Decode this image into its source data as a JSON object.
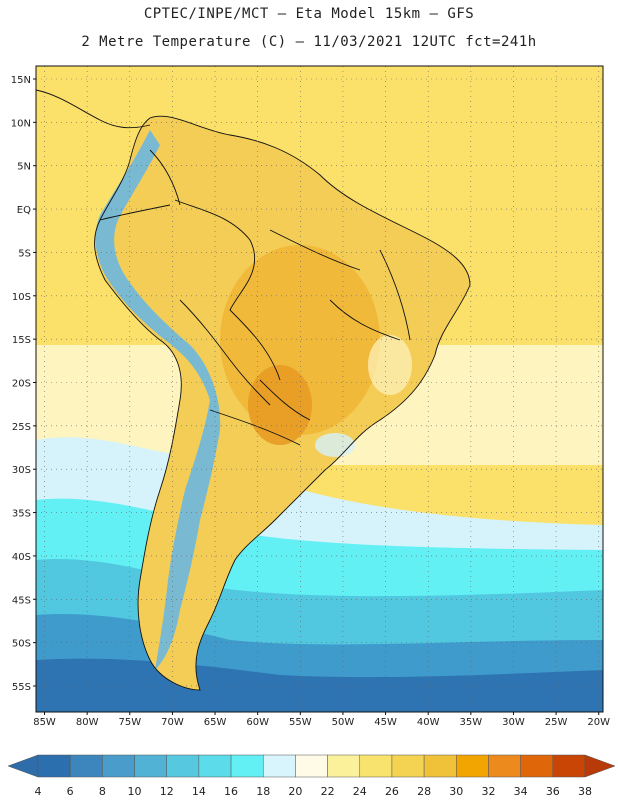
{
  "header": {
    "line1": "CPTEC/INPE/MCT –  Eta Model 15km – GFS",
    "line2": "2 Metre Temperature (C) – 11/03/2021 12UTC fct=241h"
  },
  "map": {
    "lat_labels": [
      "15N",
      "10N",
      "5N",
      "EQ",
      "5S",
      "10S",
      "15S",
      "20S",
      "25S",
      "30S",
      "35S",
      "40S",
      "45S",
      "50S",
      "55S"
    ],
    "lon_labels": [
      "85W",
      "80W",
      "75W",
      "70W",
      "65W",
      "60W",
      "55W",
      "50W",
      "45W",
      "40W",
      "35W",
      "30W",
      "25W",
      "20W"
    ],
    "extent": {
      "lon_min": -86,
      "lon_max": -19.5,
      "lat_min": -58,
      "lat_max": 16.5
    }
  },
  "colorbar": {
    "units": "C",
    "ticks": [
      "4",
      "6",
      "8",
      "10",
      "12",
      "14",
      "16",
      "18",
      "20",
      "22",
      "24",
      "26",
      "28",
      "30",
      "32",
      "34",
      "36",
      "38"
    ],
    "colors": [
      "#2b6fae",
      "#3d86bd",
      "#4a9ccb",
      "#52b2d6",
      "#56c8e0",
      "#5cdcea",
      "#62f0f5",
      "#d8f4fc",
      "#fffbe6",
      "#fbf19a",
      "#f8e36f",
      "#f4d352",
      "#f0c23a",
      "#f2a500",
      "#ec8a1e",
      "#e0660a",
      "#c94505"
    ],
    "under_color": "#2e6daa",
    "over_color": "#b73a08"
  },
  "field_colors": {
    "ocean_tropical": "#fbe06a",
    "land_warm": "#f3cd55",
    "land_hot": "#f0b535",
    "land_hottest": "#e89b24",
    "ocean_mid": "#fdf4c0",
    "ocean_cool": "#d6f2fa",
    "ocean_cold1": "#62f0f5",
    "ocean_cold2": "#52c8e0",
    "ocean_cold3": "#3f9bcc",
    "ocean_cold4": "#2f74b2",
    "andes": "#6cb8e0"
  }
}
